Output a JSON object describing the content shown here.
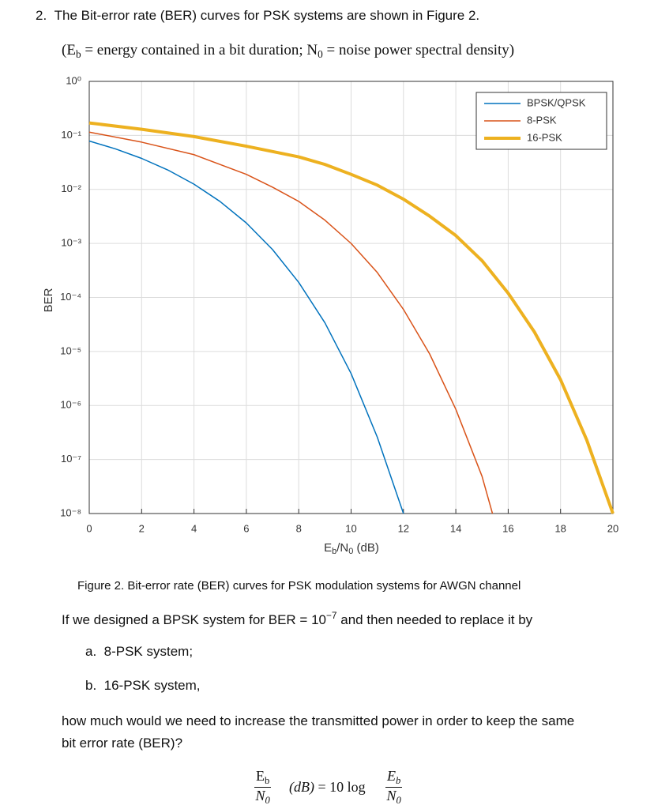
{
  "question": {
    "number": "2.",
    "text": "The Bit-error rate (BER) curves for PSK systems are shown in Figure 2."
  },
  "definitions": [
    "(E",
    "b",
    " = energy contained in a bit duration; N",
    "0",
    " = noise power spectral density)"
  ],
  "chart_data": {
    "type": "line",
    "ylabel": "BER",
    "xlabel": [
      "E",
      "b",
      "/N",
      "0",
      " (dB)"
    ],
    "xlim": [
      0,
      20
    ],
    "xticks": [
      0,
      2,
      4,
      6,
      8,
      10,
      12,
      14,
      16,
      18,
      20
    ],
    "ylim": [
      1e-08,
      1
    ],
    "yscale": "log",
    "yticks": [
      {
        "value": 1,
        "label": "10⁰"
      },
      {
        "value": 0.1,
        "label": "10⁻¹"
      },
      {
        "value": 0.01,
        "label": "10⁻²"
      },
      {
        "value": 0.001,
        "label": "10⁻³"
      },
      {
        "value": 0.0001,
        "label": "10⁻⁴"
      },
      {
        "value": 1e-05,
        "label": "10⁻⁵"
      },
      {
        "value": 1e-06,
        "label": "10⁻⁶"
      },
      {
        "value": 1e-07,
        "label": "10⁻⁷"
      },
      {
        "value": 1e-08,
        "label": "10⁻⁸"
      }
    ],
    "grid": true,
    "legend": "top-right",
    "series": [
      {
        "name": "BPSK/QPSK",
        "color": "#0072bd",
        "width": 1.5,
        "x": [
          0,
          1,
          2,
          3,
          4,
          5,
          6,
          7,
          8,
          9,
          10,
          11,
          12
        ],
        "values": [
          0.0786,
          0.0563,
          0.0375,
          0.0229,
          0.0125,
          0.00595,
          0.00239,
          0.00077,
          0.00019,
          3.4e-05,
          3.9e-06,
          2.6e-07,
          1e-08
        ]
      },
      {
        "name": "8-PSK",
        "color": "#d95319",
        "width": 1.5,
        "x": [
          0,
          2,
          4,
          6,
          7,
          8,
          9,
          10,
          11,
          12,
          13,
          14,
          15,
          15.4
        ],
        "values": [
          0.115,
          0.075,
          0.044,
          0.019,
          0.011,
          0.006,
          0.0027,
          0.001,
          0.00029,
          6e-05,
          9e-06,
          8.5e-07,
          4.9e-08,
          1e-08
        ]
      },
      {
        "name": "16-PSK",
        "color": "#edb120",
        "width": 4,
        "x": [
          0,
          2,
          4,
          6,
          8,
          9,
          10,
          11,
          12,
          13,
          14,
          15,
          16,
          17,
          18,
          19,
          20
        ],
        "values": [
          0.17,
          0.13,
          0.095,
          0.063,
          0.04,
          0.029,
          0.019,
          0.012,
          0.0066,
          0.0032,
          0.0014,
          0.00048,
          0.00012,
          2.3e-05,
          3e-06,
          2.3e-07,
          1e-08
        ]
      }
    ]
  },
  "caption": "Figure 2. Bit-error rate (BER) curves for PSK modulation systems for AWGN channel",
  "prompt": [
    "If we designed a BPSK system for BER = ",
    "10",
    "−7",
    " and then needed to replace it by"
  ],
  "options": [
    {
      "label": "a.",
      "text": "8-PSK system;"
    },
    {
      "label": "b.",
      "text": "16-PSK system,"
    }
  ],
  "ask": [
    "how much would we need to increase the transmitted power in order to keep the same",
    "bit error rate (BER)?"
  ],
  "formula": {
    "lhs_num": "E",
    "lhs_num_sub": "b",
    "lhs_den": "N",
    "lhs_den_sub": "0",
    "unit": "(dB)",
    "equals": "= 10 log",
    "rhs_num": "E",
    "rhs_num_sub": "b",
    "rhs_den": "N",
    "rhs_den_sub": "0"
  }
}
